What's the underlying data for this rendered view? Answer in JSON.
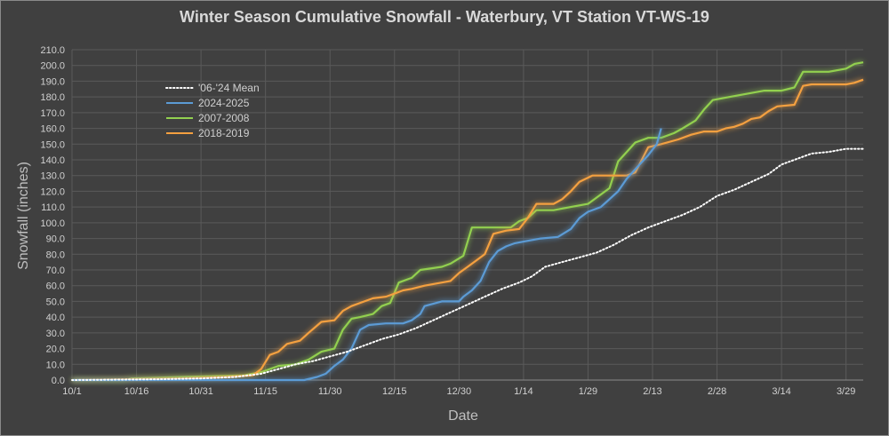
{
  "colors": {
    "background": "#404040",
    "grid": "#5a5a5a",
    "mean": "#ffffff",
    "s2024": "#5b9bd5",
    "s2007": "#92d050",
    "s2018": "#f4a040"
  },
  "chart_data": {
    "type": "line",
    "title": "Winter Season Cumulative Snowfall - Waterbury, VT Station VT-WS-19",
    "xlabel": "Date",
    "ylabel": "Snowfall (inches)",
    "x_unit": "day of season (0 = 10/1)",
    "xlim": [
      0,
      184
    ],
    "ylim": [
      0,
      210
    ],
    "y_tick_step": 10,
    "x_tick_days": [
      0,
      15,
      30,
      45,
      60,
      75,
      90,
      105,
      120,
      135,
      150,
      165,
      180
    ],
    "x_tick_labels": [
      "10/1",
      "10/16",
      "10/31",
      "11/15",
      "11/30",
      "12/15",
      "12/30",
      "1/14",
      "1/29",
      "2/13",
      "2/28",
      "3/14",
      "3/29"
    ],
    "y_tick_labels": [
      "0.0",
      "10.0",
      "20.0",
      "30.0",
      "40.0",
      "50.0",
      "60.0",
      "70.0",
      "80.0",
      "90.0",
      "100.0",
      "110.0",
      "120.0",
      "130.0",
      "140.0",
      "150.0",
      "160.0",
      "170.0",
      "180.0",
      "190.0",
      "200.0",
      "210.0"
    ],
    "legend_placement": "upper-left",
    "grid": true,
    "series": [
      {
        "name": "'06-'24 Mean",
        "style": "dotted",
        "color_key": "mean",
        "points": [
          [
            0,
            0
          ],
          [
            20,
            0.5
          ],
          [
            30,
            1
          ],
          [
            38,
            2
          ],
          [
            44,
            4
          ],
          [
            48,
            7
          ],
          [
            52,
            10
          ],
          [
            56,
            12
          ],
          [
            60,
            15
          ],
          [
            64,
            18
          ],
          [
            68,
            22
          ],
          [
            72,
            26
          ],
          [
            76,
            29
          ],
          [
            80,
            33
          ],
          [
            84,
            38
          ],
          [
            88,
            43
          ],
          [
            92,
            48
          ],
          [
            96,
            53
          ],
          [
            100,
            58
          ],
          [
            104,
            62
          ],
          [
            107,
            66
          ],
          [
            110,
            72
          ],
          [
            114,
            75
          ],
          [
            118,
            78
          ],
          [
            122,
            81
          ],
          [
            126,
            86
          ],
          [
            130,
            92
          ],
          [
            134,
            97
          ],
          [
            138,
            101
          ],
          [
            142,
            105
          ],
          [
            146,
            110
          ],
          [
            150,
            117
          ],
          [
            154,
            121
          ],
          [
            158,
            126
          ],
          [
            162,
            131
          ],
          [
            165,
            137
          ],
          [
            168,
            140
          ],
          [
            172,
            144
          ],
          [
            176,
            145
          ],
          [
            180,
            147
          ],
          [
            184,
            147
          ]
        ]
      },
      {
        "name": "2024-2025",
        "color_key": "s2024",
        "points": [
          [
            0,
            0
          ],
          [
            54,
            0
          ],
          [
            57,
            2
          ],
          [
            59,
            4
          ],
          [
            61,
            9
          ],
          [
            63,
            13
          ],
          [
            65,
            20
          ],
          [
            67,
            32
          ],
          [
            69,
            35
          ],
          [
            73,
            36
          ],
          [
            77,
            36
          ],
          [
            79,
            38
          ],
          [
            81,
            42
          ],
          [
            82,
            47
          ],
          [
            86,
            50
          ],
          [
            90,
            50
          ],
          [
            91,
            53
          ],
          [
            93,
            57
          ],
          [
            95,
            63
          ],
          [
            97,
            75
          ],
          [
            99,
            82
          ],
          [
            101,
            85
          ],
          [
            103,
            87
          ],
          [
            105,
            88
          ],
          [
            109,
            90
          ],
          [
            113,
            91
          ],
          [
            116,
            96
          ],
          [
            118,
            103
          ],
          [
            120,
            107
          ],
          [
            123,
            110
          ],
          [
            125,
            115
          ],
          [
            127,
            120
          ],
          [
            129,
            128
          ],
          [
            132,
            137
          ],
          [
            134,
            143
          ],
          [
            136,
            150
          ],
          [
            137,
            160
          ]
        ]
      },
      {
        "name": "2007-2008",
        "color_key": "s2007",
        "points": [
          [
            0,
            0
          ],
          [
            12,
            0
          ],
          [
            14,
            1
          ],
          [
            26,
            2
          ],
          [
            40,
            3
          ],
          [
            44,
            5
          ],
          [
            48,
            9
          ],
          [
            52,
            10
          ],
          [
            55,
            13
          ],
          [
            58,
            18
          ],
          [
            61,
            20
          ],
          [
            63,
            32
          ],
          [
            65,
            39
          ],
          [
            67,
            40
          ],
          [
            70,
            42
          ],
          [
            72,
            47
          ],
          [
            74,
            49
          ],
          [
            76,
            62
          ],
          [
            79,
            65
          ],
          [
            81,
            70
          ],
          [
            86,
            72
          ],
          [
            88,
            74
          ],
          [
            91,
            79
          ],
          [
            93,
            97
          ],
          [
            97,
            97
          ],
          [
            102,
            97
          ],
          [
            104,
            101
          ],
          [
            106,
            103
          ],
          [
            108,
            108
          ],
          [
            112,
            108
          ],
          [
            116,
            110
          ],
          [
            120,
            112
          ],
          [
            123,
            118
          ],
          [
            125,
            122
          ],
          [
            127,
            139
          ],
          [
            129,
            145
          ],
          [
            131,
            151
          ],
          [
            134,
            154
          ],
          [
            137,
            154
          ],
          [
            140,
            157
          ],
          [
            142,
            160
          ],
          [
            145,
            165
          ],
          [
            147,
            172
          ],
          [
            149,
            178
          ],
          [
            153,
            180
          ],
          [
            157,
            182
          ],
          [
            161,
            184
          ],
          [
            165,
            184
          ],
          [
            168,
            186
          ],
          [
            170,
            196
          ],
          [
            172,
            196
          ],
          [
            176,
            196
          ],
          [
            180,
            198
          ],
          [
            182,
            201
          ],
          [
            184,
            202
          ]
        ]
      },
      {
        "name": "2018-2019",
        "color_key": "s2018",
        "points": [
          [
            0,
            0
          ],
          [
            26,
            1
          ],
          [
            36,
            2
          ],
          [
            42,
            3
          ],
          [
            44,
            7
          ],
          [
            46,
            16
          ],
          [
            48,
            18
          ],
          [
            50,
            23
          ],
          [
            53,
            25
          ],
          [
            55,
            30
          ],
          [
            58,
            37
          ],
          [
            61,
            38
          ],
          [
            63,
            44
          ],
          [
            65,
            47
          ],
          [
            68,
            50
          ],
          [
            70,
            52
          ],
          [
            73,
            53
          ],
          [
            75,
            55
          ],
          [
            77,
            57
          ],
          [
            79,
            58
          ],
          [
            82,
            60
          ],
          [
            86,
            62
          ],
          [
            88,
            63
          ],
          [
            90,
            68
          ],
          [
            92,
            72
          ],
          [
            94,
            76
          ],
          [
            96,
            80
          ],
          [
            98,
            93
          ],
          [
            101,
            95
          ],
          [
            104,
            96
          ],
          [
            106,
            103
          ],
          [
            108,
            112
          ],
          [
            112,
            112
          ],
          [
            114,
            115
          ],
          [
            116,
            120
          ],
          [
            118,
            126
          ],
          [
            121,
            130
          ],
          [
            125,
            130
          ],
          [
            129,
            130
          ],
          [
            131,
            132
          ],
          [
            134,
            148
          ],
          [
            137,
            150
          ],
          [
            141,
            153
          ],
          [
            144,
            156
          ],
          [
            147,
            158
          ],
          [
            150,
            158
          ],
          [
            152,
            160
          ],
          [
            154,
            161
          ],
          [
            156,
            163
          ],
          [
            158,
            166
          ],
          [
            160,
            167
          ],
          [
            162,
            171
          ],
          [
            164,
            174
          ],
          [
            168,
            175
          ],
          [
            170,
            187
          ],
          [
            172,
            188
          ],
          [
            176,
            188
          ],
          [
            180,
            188
          ],
          [
            182,
            189
          ],
          [
            184,
            191
          ]
        ]
      }
    ]
  }
}
